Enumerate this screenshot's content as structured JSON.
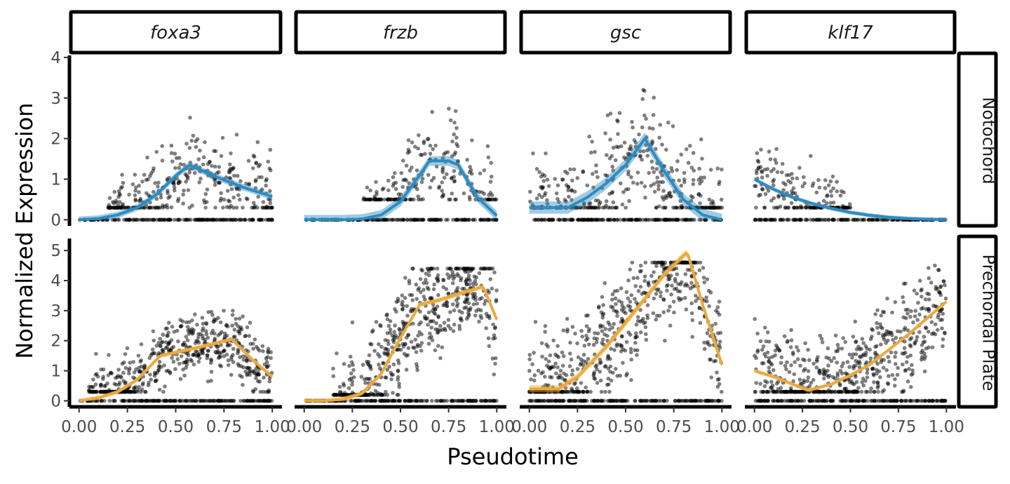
{
  "chart_data": {
    "type": "scatter",
    "layout": "facet_grid",
    "xlabel": "Pseudotime",
    "ylabel": "Normalized Expression",
    "columns": [
      "foxa3",
      "frzb",
      "gsc",
      "klf17"
    ],
    "rows": [
      {
        "name": "Notochord",
        "color": "#2E8BC0",
        "ylim": [
          -0.15,
          4.05
        ],
        "yticks": [
          0,
          1,
          2,
          3,
          4
        ]
      },
      {
        "name": "Prechordal Plate",
        "color": "#EBAA3C",
        "ylim": [
          -0.2,
          5.4
        ],
        "yticks": [
          0,
          1,
          2,
          3,
          4,
          5
        ]
      }
    ],
    "xlim": [
      -0.05,
      1.05
    ],
    "xticks": [
      0.0,
      0.25,
      0.5,
      0.75,
      1.0
    ],
    "xtick_labels": [
      "0.00",
      "0.25",
      "0.50",
      "0.75",
      "1.00"
    ],
    "point_color": "#000000",
    "point_alpha": 0.5,
    "grid": false,
    "panels": [
      {
        "row": 0,
        "col": 0,
        "gene": "foxa3",
        "fit": {
          "x": [
            0,
            0.1,
            0.2,
            0.3,
            0.4,
            0.5,
            0.57,
            0.65,
            0.75,
            0.85,
            1.0
          ],
          "y": [
            0,
            0.03,
            0.12,
            0.3,
            0.62,
            1.08,
            1.35,
            1.18,
            0.98,
            0.8,
            0.57
          ]
        },
        "band": 0.08,
        "cloud": {
          "x0": 0.15,
          "x1": 1.0,
          "ymin": 0.3,
          "ymax": 2.8,
          "n": 330,
          "zero_x": [
            0,
            1
          ],
          "zero_n": 170
        }
      },
      {
        "row": 0,
        "col": 1,
        "gene": "frzb",
        "fit": {
          "x": [
            0,
            0.2,
            0.3,
            0.4,
            0.5,
            0.6,
            0.65,
            0.75,
            0.8,
            0.9,
            1.0
          ],
          "y": [
            0,
            0,
            0.02,
            0.12,
            0.45,
            1.1,
            1.45,
            1.45,
            1.35,
            0.55,
            0.1
          ]
        },
        "band": 0.12,
        "cloud": {
          "x0": 0.3,
          "x1": 1.0,
          "ymin": 0.5,
          "ymax": 3.3,
          "n": 230,
          "zero_x": [
            0,
            1
          ],
          "zero_n": 170
        }
      },
      {
        "row": 0,
        "col": 2,
        "gene": "gsc",
        "fit": {
          "x": [
            0,
            0.1,
            0.2,
            0.3,
            0.4,
            0.5,
            0.6,
            0.7,
            0.8,
            0.9,
            1.0
          ],
          "y": [
            0.3,
            0.3,
            0.3,
            0.55,
            0.9,
            1.35,
            2.0,
            1.2,
            0.5,
            0.12,
            0.0
          ]
        },
        "band": 0.15,
        "cloud": {
          "x0": 0.0,
          "x1": 1.0,
          "ymin": 0.3,
          "ymax": 3.9,
          "n": 380,
          "zero_x": [
            0,
            1
          ],
          "zero_n": 170
        }
      },
      {
        "row": 0,
        "col": 3,
        "gene": "klf17",
        "fit": {
          "x": [
            0,
            0.1,
            0.2,
            0.3,
            0.4,
            0.5,
            0.6,
            0.7,
            0.8,
            0.9,
            1.0
          ],
          "y": [
            1.0,
            0.75,
            0.55,
            0.4,
            0.28,
            0.18,
            0.11,
            0.06,
            0.03,
            0.01,
            0.0
          ]
        },
        "band": 0.05,
        "cloud": {
          "x0": 0.0,
          "x1": 0.5,
          "ymin": 0.3,
          "ymax": 2.5,
          "n": 180,
          "zero_x": [
            0,
            1
          ],
          "zero_n": 170
        }
      },
      {
        "row": 1,
        "col": 0,
        "gene": "foxa3",
        "fit": {
          "x": [
            0,
            0.1,
            0.2,
            0.3,
            0.42,
            0.6,
            0.79,
            0.9,
            1.0
          ],
          "y": [
            0,
            0.1,
            0.3,
            0.7,
            1.5,
            1.75,
            2.05,
            1.35,
            0.8
          ]
        },
        "band": 0.07,
        "cloud": {
          "x0": 0.05,
          "x1": 1.0,
          "ymin": 0.3,
          "ymax": 3.0,
          "n": 550,
          "zero_x": [
            0,
            1
          ],
          "zero_n": 170
        }
      },
      {
        "row": 1,
        "col": 1,
        "gene": "frzb",
        "fit": {
          "x": [
            0,
            0.1,
            0.2,
            0.3,
            0.4,
            0.5,
            0.6,
            0.7,
            0.8,
            0.93,
            1.0
          ],
          "y": [
            0,
            0,
            0.05,
            0.25,
            0.9,
            2.1,
            3.2,
            3.35,
            3.55,
            3.8,
            2.7
          ]
        },
        "band": 0.08,
        "cloud": {
          "x0": 0.15,
          "x1": 1.0,
          "ymin": 0.2,
          "ymax": 4.4,
          "n": 560,
          "zero_x": [
            0,
            1
          ],
          "zero_n": 170
        }
      },
      {
        "row": 1,
        "col": 2,
        "gene": "gsc",
        "fit": {
          "x": [
            0,
            0.15,
            0.25,
            0.4,
            0.55,
            0.7,
            0.82,
            0.9,
            1.0
          ],
          "y": [
            0.4,
            0.4,
            0.8,
            1.8,
            3.0,
            4.2,
            4.95,
            3.2,
            1.2
          ]
        },
        "band": 0.12,
        "cloud": {
          "x0": 0.0,
          "x1": 1.0,
          "ymin": 0.3,
          "ymax": 4.6,
          "n": 580,
          "zero_x": [
            0,
            1
          ],
          "zero_n": 170
        }
      },
      {
        "row": 1,
        "col": 3,
        "gene": "klf17",
        "fit": {
          "x": [
            0,
            0.1,
            0.2,
            0.28,
            0.4,
            0.5,
            0.6,
            0.7,
            0.8,
            0.9,
            1.0
          ],
          "y": [
            1.0,
            0.8,
            0.55,
            0.35,
            0.55,
            0.85,
            1.2,
            1.7,
            2.2,
            2.75,
            3.3
          ]
        },
        "band": 0.06,
        "cloud": {
          "x0": 0.0,
          "x1": 1.0,
          "ymin": 0.3,
          "ymax": 4.5,
          "n": 560,
          "zero_x": [
            0,
            1
          ],
          "zero_n": 170
        }
      }
    ]
  }
}
